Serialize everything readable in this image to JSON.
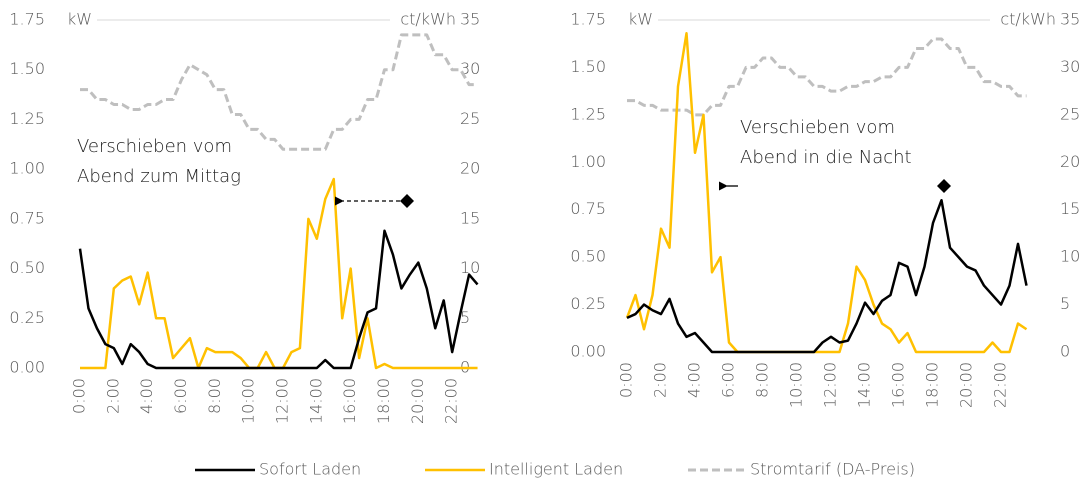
{
  "chart_data": [
    {
      "type": "line",
      "ylabel": "kW",
      "y2label": "ct/kWh",
      "annotation": [
        "Verschieben vom",
        "Abend zum Mittag"
      ],
      "x": [
        0,
        0.5,
        1,
        1.5,
        2,
        2.5,
        3,
        3.5,
        4,
        4.5,
        5,
        5.5,
        6,
        6.5,
        7,
        7.5,
        8,
        8.5,
        9,
        9.5,
        10,
        10.5,
        11,
        11.5,
        12,
        12.5,
        13,
        13.5,
        14,
        14.5,
        15,
        15.5,
        16,
        16.5,
        17,
        17.5,
        18,
        18.5,
        19,
        19.5,
        20,
        20.5,
        21,
        21.5,
        22,
        22.5,
        23,
        23.5
      ],
      "xlim": [
        0,
        24
      ],
      "xticks": [
        {
          "value": 0,
          "label": "0:00"
        },
        {
          "value": 2,
          "label": "2:00"
        },
        {
          "value": 4,
          "label": "4:00"
        },
        {
          "value": 6,
          "label": "6:00"
        },
        {
          "value": 8,
          "label": "8:00"
        },
        {
          "value": 10,
          "label": "10:00"
        },
        {
          "value": 12,
          "label": "12:00"
        },
        {
          "value": 14,
          "label": "14:00"
        },
        {
          "value": 16,
          "label": "16:00"
        },
        {
          "value": 18,
          "label": "18:00"
        },
        {
          "value": 20,
          "label": "20:00"
        },
        {
          "value": 22,
          "label": "22:00"
        }
      ],
      "ylim": [
        0,
        1.75
      ],
      "yticks": [
        {
          "value": 0,
          "label": "0.00"
        },
        {
          "value": 0.25,
          "label": "0.25"
        },
        {
          "value": 0.5,
          "label": "0.50"
        },
        {
          "value": 0.75,
          "label": "0.75"
        },
        {
          "value": 1,
          "label": "1.00"
        },
        {
          "value": 1.25,
          "label": "1.25"
        },
        {
          "value": 1.5,
          "label": "1.50"
        },
        {
          "value": 1.75,
          "label": "1.75"
        }
      ],
      "y2lim": [
        0,
        35
      ],
      "y2ticks": [
        0,
        5,
        10,
        15,
        20,
        25,
        30,
        35
      ],
      "series": [
        {
          "name": "Sofort Laden",
          "color": "#000000",
          "values": [
            0.6,
            0.3,
            0.2,
            0.12,
            0.1,
            0.02,
            0.12,
            0.08,
            0.02,
            0,
            0,
            0,
            0,
            0,
            0,
            0,
            0,
            0,
            0,
            0,
            0,
            0,
            0,
            0,
            0,
            0,
            0,
            0,
            0,
            0.04,
            0,
            0,
            0,
            0.15,
            0.28,
            0.3,
            0.69,
            0.57,
            0.4,
            0.47,
            0.53,
            0.4,
            0.2,
            0.34,
            0.08,
            0.28,
            0.47,
            0.42
          ]
        },
        {
          "name": "Intelligent Laden",
          "color": "#ffc000",
          "values": [
            0,
            0,
            0,
            0,
            0.4,
            0.44,
            0.46,
            0.32,
            0.48,
            0.25,
            0.25,
            0.05,
            0.1,
            0.15,
            0,
            0.1,
            0.08,
            0.08,
            0.08,
            0.05,
            0,
            0,
            0.08,
            0,
            0,
            0.08,
            0.1,
            0.75,
            0.65,
            0.85,
            0.95,
            0.25,
            0.5,
            0.05,
            0.25,
            0,
            0.02,
            0,
            0,
            0,
            0,
            0,
            0,
            0,
            0,
            0,
            0,
            0
          ]
        },
        {
          "name": "Stromtarif (DA-Preis)",
          "color": "#bfbfbf",
          "dashed": true,
          "axis": "y2",
          "values": [
            28,
            28,
            27,
            27,
            26.5,
            26.5,
            26,
            26,
            26.5,
            26.5,
            27,
            27,
            29,
            30.5,
            30,
            29.5,
            28,
            28,
            25.5,
            25.5,
            24,
            24,
            23,
            23,
            22,
            22,
            22,
            22,
            22,
            22,
            24,
            24,
            25,
            25,
            27,
            27,
            30,
            30,
            33.5,
            33.5,
            33.5,
            33.5,
            31.5,
            31.5,
            30,
            30,
            28.5,
            28.5
          ]
        }
      ]
    },
    {
      "type": "line",
      "ylabel": "kW",
      "y2label": "ct/kWh",
      "annotation": [
        "Verschieben vom",
        "Abend in die Nacht"
      ],
      "x": [
        0,
        0.5,
        1,
        1.5,
        2,
        2.5,
        3,
        3.5,
        4,
        4.5,
        5,
        5.5,
        6,
        6.5,
        7,
        7.5,
        8,
        8.5,
        9,
        9.5,
        10,
        10.5,
        11,
        11.5,
        12,
        12.5,
        13,
        13.5,
        14,
        14.5,
        15,
        15.5,
        16,
        16.5,
        17,
        17.5,
        18,
        18.5,
        19,
        19.5,
        20,
        20.5,
        21,
        21.5,
        22,
        22.5,
        23,
        23.5
      ],
      "xlim": [
        0,
        24
      ],
      "xticks": [
        {
          "value": 0,
          "label": "0:00"
        },
        {
          "value": 2,
          "label": "2:00"
        },
        {
          "value": 4,
          "label": "4:00"
        },
        {
          "value": 6,
          "label": "6:00"
        },
        {
          "value": 8,
          "label": "8:00"
        },
        {
          "value": 10,
          "label": "10:00"
        },
        {
          "value": 12,
          "label": "12:00"
        },
        {
          "value": 14,
          "label": "14:00"
        },
        {
          "value": 16,
          "label": "16:00"
        },
        {
          "value": 18,
          "label": "18:00"
        },
        {
          "value": 20,
          "label": "20:00"
        },
        {
          "value": 22,
          "label": "22:00"
        }
      ],
      "ylim": [
        0,
        1.75
      ],
      "yticks": [
        {
          "value": 0,
          "label": "0.00"
        },
        {
          "value": 0.25,
          "label": "0.25"
        },
        {
          "value": 0.5,
          "label": "0.50"
        },
        {
          "value": 0.75,
          "label": "0.75"
        },
        {
          "value": 1,
          "label": "1.00"
        },
        {
          "value": 1.25,
          "label": "1.25"
        },
        {
          "value": 1.5,
          "label": "1.50"
        },
        {
          "value": 1.75,
          "label": "1.75"
        }
      ],
      "y2lim": [
        0,
        35
      ],
      "y2ticks": [
        0,
        5,
        10,
        15,
        20,
        25,
        30,
        35
      ],
      "series": [
        {
          "name": "Sofort Laden",
          "color": "#000000",
          "values": [
            0.18,
            0.2,
            0.25,
            0.22,
            0.2,
            0.28,
            0.15,
            0.08,
            0.1,
            0.05,
            0,
            0,
            0,
            0,
            0,
            0,
            0,
            0,
            0,
            0,
            0,
            0,
            0,
            0.05,
            0.08,
            0.05,
            0.06,
            0.15,
            0.26,
            0.2,
            0.27,
            0.3,
            0.47,
            0.45,
            0.3,
            0.45,
            0.68,
            0.8,
            0.55,
            0.5,
            0.45,
            0.43,
            0.35,
            0.3,
            0.25,
            0.35,
            0.57,
            0.35
          ]
        },
        {
          "name": "Intelligent Laden",
          "color": "#ffc000",
          "values": [
            0.18,
            0.3,
            0.12,
            0.3,
            0.65,
            0.55,
            1.4,
            1.68,
            1.05,
            1.25,
            0.42,
            0.5,
            0.05,
            0,
            0,
            0,
            0,
            0,
            0,
            0,
            0,
            0,
            0,
            0,
            0,
            0,
            0.15,
            0.45,
            0.38,
            0.25,
            0.15,
            0.12,
            0.05,
            0.1,
            0,
            0,
            0,
            0,
            0,
            0,
            0,
            0,
            0,
            0.05,
            0,
            0,
            0.15,
            0.12
          ]
        },
        {
          "name": "Stromtarif (DA-Preis)",
          "color": "#bfbfbf",
          "dashed": true,
          "axis": "y2",
          "values": [
            26.5,
            26.5,
            26,
            26,
            25.5,
            25.5,
            25.5,
            25.5,
            25,
            25,
            26,
            26,
            28,
            28,
            30,
            30,
            31,
            31,
            30,
            30,
            29,
            29,
            28,
            28,
            27.5,
            27.5,
            28,
            28,
            28.5,
            28.5,
            29,
            29,
            30,
            30,
            32,
            32,
            33,
            33,
            32,
            32,
            30,
            30,
            28.5,
            28.5,
            28,
            28,
            27,
            27
          ]
        }
      ]
    }
  ]
}
